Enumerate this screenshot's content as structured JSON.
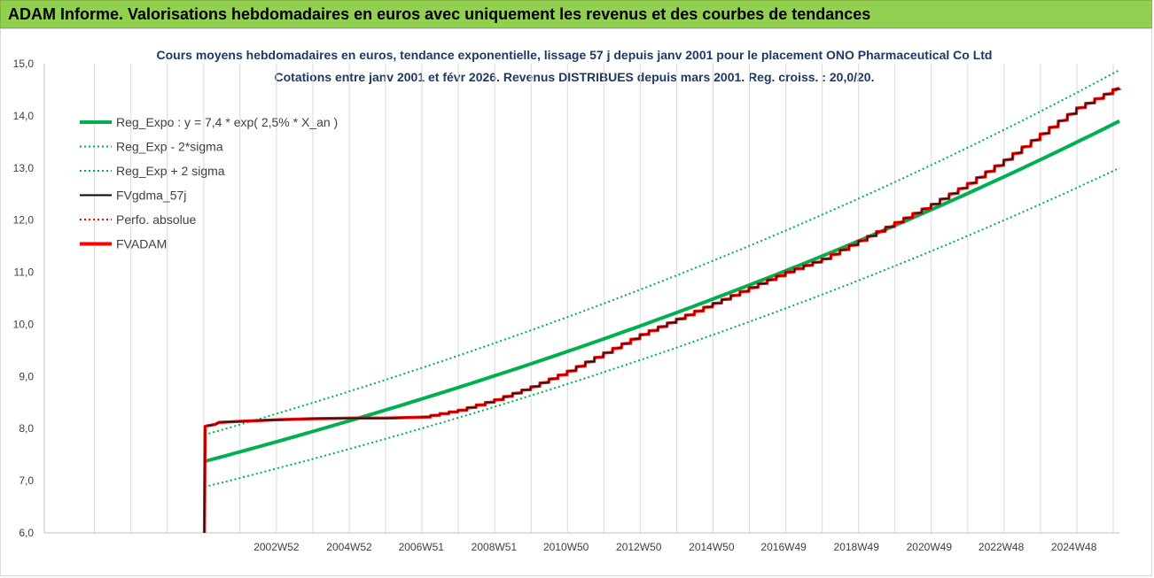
{
  "header": {
    "title": "ADAM Informe. Valorisations hebdomadaires en euros avec uniquement les revenus et des courbes de tendances"
  },
  "colors": {
    "banner": "#92d050",
    "trend": "#00b050",
    "fvgdma": "#000000",
    "fvadam": "#ff0000"
  },
  "chart_data": {
    "type": "line",
    "title": "Cours moyens hebdomadaires en euros, tendance exponentielle, lissage 57 j depuis janv 2001  pour le placement ONO Pharmaceutical Co Ltd",
    "subtitle": "Cotations entre janv 2001 et févr 2026. Revenus DISTRIBUES depuis mars 2001. Reg. croiss. : 20,0/20.",
    "ylim": [
      6.0,
      15.0
    ],
    "xlim": [
      1996.6,
      2026.15
    ],
    "y_ticks": [
      "6,0",
      "7,0",
      "8,0",
      "9,0",
      "10,0",
      "11,0",
      "12,0",
      "13,0",
      "14,0",
      "15,0"
    ],
    "x_ticks": [
      {
        "label": "2002W52",
        "x": 2002.98
      },
      {
        "label": "2004W52",
        "x": 2004.98
      },
      {
        "label": "2006W51",
        "x": 2006.96
      },
      {
        "label": "2008W51",
        "x": 2008.96
      },
      {
        "label": "2010W50",
        "x": 2010.94
      },
      {
        "label": "2012W50",
        "x": 2012.94
      },
      {
        "label": "2014W50",
        "x": 2014.94
      },
      {
        "label": "2016W49",
        "x": 2016.92
      },
      {
        "label": "2018W49",
        "x": 2018.92
      },
      {
        "label": "2020W49",
        "x": 2020.92
      },
      {
        "label": "2022W48",
        "x": 2022.9
      },
      {
        "label": "2024W48",
        "x": 2024.9
      }
    ],
    "grid": "vertical",
    "legend_position": "top-left",
    "legend": [
      {
        "key": "reg_expo",
        "label": "Reg_Expo : y = 7,4 * exp( 2,5% *  X_an )",
        "color": "#00b050",
        "style": "solid-thick"
      },
      {
        "key": "reg_minus",
        "label": "Reg_Exp - 2*sigma",
        "color": "#00b050",
        "style": "dotted"
      },
      {
        "key": "reg_plus",
        "label": "Reg_Exp + 2 sigma",
        "color": "#00b050",
        "style": "dotted"
      },
      {
        "key": "fvgdma",
        "label": "FVgdma_57j",
        "color": "#000000",
        "style": "solid"
      },
      {
        "key": "perfo",
        "label": "Perfo. absolue",
        "color": "#ff0000",
        "style": "dotted"
      },
      {
        "key": "fvadam",
        "label": "FVADAM",
        "color": "#ff0000",
        "style": "solid-thick"
      }
    ],
    "series": [
      {
        "name": "Reg_Expo : y = 7,4 * exp( 2,5% *  X_an )",
        "x": [
          2001.0,
          2026.15
        ],
        "y": [
          7.37,
          13.9
        ],
        "model": "exp"
      },
      {
        "name": "Reg_Exp - 2*sigma",
        "x": [
          2001.0,
          2026.15
        ],
        "y": [
          6.88,
          13.0
        ],
        "model": "exp"
      },
      {
        "name": "Reg_Exp + 2 sigma",
        "x": [
          2001.0,
          2026.15
        ],
        "y": [
          7.88,
          14.88
        ],
        "model": "exp"
      },
      {
        "name": "FVADAM",
        "x": [
          2001.0,
          2001.02,
          2001.05,
          2001.3,
          2001.4,
          2002.0,
          2003.0,
          2004.0,
          2005.0,
          2006.0,
          2007.0,
          2008.0,
          2009.0,
          2010.0,
          2011.0,
          2012.0,
          2013.0,
          2014.0,
          2015.0,
          2016.0,
          2017.0,
          2018.0,
          2019.0,
          2020.0,
          2021.0,
          2022.0,
          2023.0,
          2024.0,
          2025.0,
          2026.0,
          2026.15
        ],
        "y": [
          6.0,
          8.04,
          8.05,
          8.08,
          8.12,
          8.14,
          8.17,
          8.19,
          8.2,
          8.2,
          8.22,
          8.35,
          8.55,
          8.8,
          9.1,
          9.45,
          9.8,
          10.1,
          10.4,
          10.7,
          11.0,
          11.25,
          11.6,
          11.95,
          12.3,
          12.7,
          13.15,
          13.65,
          14.15,
          14.5,
          14.53
        ],
        "step_from": 2007.0
      }
    ]
  }
}
